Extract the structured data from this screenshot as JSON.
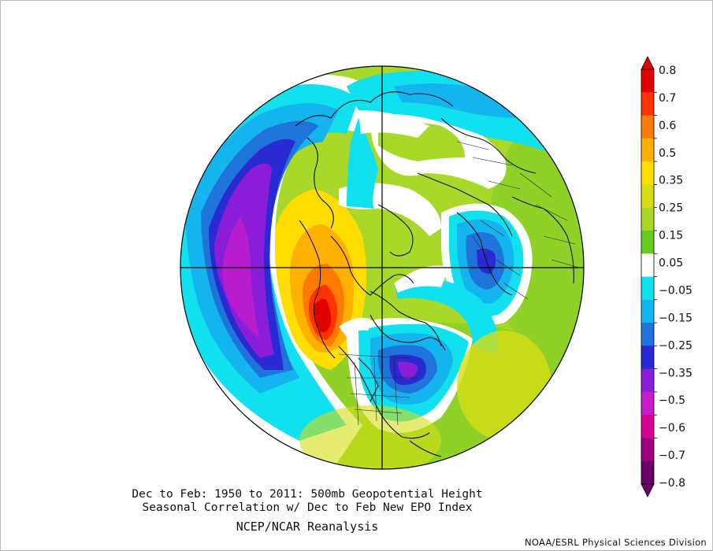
{
  "caption": {
    "line1": "Dec to Feb: 1950 to 2011: 500mb Geopotential Height",
    "line2": "Seasonal Correlation w/ Dec to Feb New EPO Index",
    "line3": "NCEP/NCAR Reanalysis"
  },
  "credit": "NOAA/ESRL Physical Sciences Division",
  "colorbar": {
    "labels": [
      "0.8",
      "0.7",
      "0.6",
      "0.5",
      "0.35",
      "0.25",
      "0.15",
      "0.05",
      "−0.05",
      "−0.15",
      "−0.25",
      "−0.35",
      "−0.5",
      "−0.6",
      "−0.7",
      "−0.8"
    ],
    "colors": [
      "#e00000",
      "#ff3300",
      "#ff7a00",
      "#ffb000",
      "#ffdd00",
      "#d6dd16",
      "#a8d82a",
      "#66cc22",
      "#ffffff",
      "#11e0ee",
      "#14b4ee",
      "#1f74dc",
      "#2a2ad2",
      "#8a1ed8",
      "#c51ec8",
      "#d80090",
      "#a00080",
      "#6a0066"
    ]
  },
  "map": {
    "projection": "north-polar-stereographic",
    "field": "500mb geopotential height correlation with EPO index",
    "features": [
      {
        "name": "positive-anomaly-alaska",
        "value": 0.8
      },
      {
        "name": "negative-anomaly-north-pacific",
        "value": -0.5
      },
      {
        "name": "negative-anomaly-eastern-canada",
        "value": -0.35
      },
      {
        "name": "negative-anomaly-northern-europe",
        "value": -0.25
      }
    ]
  }
}
